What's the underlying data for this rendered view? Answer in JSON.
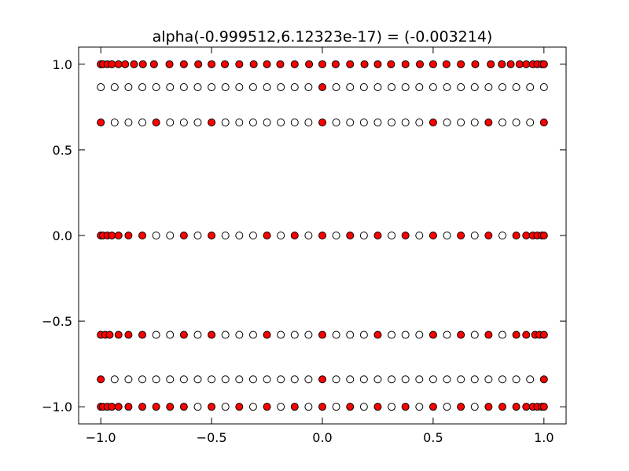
{
  "chart_data": {
    "type": "scatter",
    "title": "alpha(-0.999512,6.12323e-17) =  (-0.003214)",
    "xlabel": "",
    "ylabel": "",
    "xlim": [
      -1.1,
      1.1
    ],
    "ylim": [
      -1.1,
      1.1
    ],
    "grid": false,
    "legend": "none",
    "xticks": [
      -1.0,
      -0.5,
      0.0,
      0.5,
      1.0
    ],
    "xtick_labels": [
      "−1.0",
      "−0.5",
      "0.0",
      "0.5",
      "1.0"
    ],
    "yticks": [
      -1.0,
      -0.5,
      0.0,
      0.5,
      1.0
    ],
    "ytick_labels": [
      "−1.0",
      "−0.5",
      "0.0",
      "0.5",
      "1.0"
    ],
    "series": [
      {
        "marker_fill": "#ffffff",
        "marker_edge": "#000000",
        "points": [
          [
            -1.0,
            0.866
          ],
          [
            -0.9375,
            0.866
          ],
          [
            -0.875,
            0.866
          ],
          [
            -0.8125,
            0.866
          ],
          [
            -0.75,
            0.866
          ],
          [
            -0.6875,
            0.866
          ],
          [
            -0.625,
            0.866
          ],
          [
            -0.5625,
            0.866
          ],
          [
            -0.5,
            0.866
          ],
          [
            -0.4375,
            0.866
          ],
          [
            -0.375,
            0.866
          ],
          [
            -0.3125,
            0.866
          ],
          [
            -0.25,
            0.866
          ],
          [
            -0.1875,
            0.866
          ],
          [
            -0.125,
            0.866
          ],
          [
            -0.0625,
            0.866
          ],
          [
            0.0625,
            0.866
          ],
          [
            0.125,
            0.866
          ],
          [
            0.1875,
            0.866
          ],
          [
            0.25,
            0.866
          ],
          [
            0.3125,
            0.866
          ],
          [
            0.375,
            0.866
          ],
          [
            0.4375,
            0.866
          ],
          [
            0.5,
            0.866
          ],
          [
            0.5625,
            0.866
          ],
          [
            0.625,
            0.866
          ],
          [
            0.6875,
            0.866
          ],
          [
            0.75,
            0.866
          ],
          [
            0.8125,
            0.866
          ],
          [
            0.875,
            0.866
          ],
          [
            0.9375,
            0.866
          ],
          [
            1.0,
            0.866
          ],
          [
            -0.9375,
            0.66
          ],
          [
            -0.875,
            0.66
          ],
          [
            -0.8125,
            0.66
          ],
          [
            -0.6875,
            0.66
          ],
          [
            -0.625,
            0.66
          ],
          [
            -0.5625,
            0.66
          ],
          [
            -0.4375,
            0.66
          ],
          [
            -0.375,
            0.66
          ],
          [
            -0.3125,
            0.66
          ],
          [
            -0.25,
            0.66
          ],
          [
            -0.1875,
            0.66
          ],
          [
            -0.125,
            0.66
          ],
          [
            -0.0625,
            0.66
          ],
          [
            0.0625,
            0.66
          ],
          [
            0.125,
            0.66
          ],
          [
            0.1875,
            0.66
          ],
          [
            0.25,
            0.66
          ],
          [
            0.3125,
            0.66
          ],
          [
            0.375,
            0.66
          ],
          [
            0.4375,
            0.66
          ],
          [
            0.5625,
            0.66
          ],
          [
            0.625,
            0.66
          ],
          [
            0.6875,
            0.66
          ],
          [
            0.8125,
            0.66
          ],
          [
            0.875,
            0.66
          ],
          [
            0.9375,
            0.66
          ],
          [
            -0.75,
            0.0
          ],
          [
            -0.6875,
            0.0
          ],
          [
            -0.5625,
            0.0
          ],
          [
            -0.4375,
            0.0
          ],
          [
            -0.375,
            0.0
          ],
          [
            -0.3125,
            0.0
          ],
          [
            -0.1875,
            0.0
          ],
          [
            -0.0625,
            0.0
          ],
          [
            0.0625,
            0.0
          ],
          [
            0.1875,
            0.0
          ],
          [
            0.3125,
            0.0
          ],
          [
            0.4375,
            0.0
          ],
          [
            0.5625,
            0.0
          ],
          [
            0.6875,
            0.0
          ],
          [
            0.8125,
            0.0
          ],
          [
            -0.75,
            -0.58
          ],
          [
            -0.6875,
            -0.58
          ],
          [
            -0.5625,
            -0.58
          ],
          [
            -0.4375,
            -0.58
          ],
          [
            -0.375,
            -0.58
          ],
          [
            -0.3125,
            -0.58
          ],
          [
            -0.1875,
            -0.58
          ],
          [
            -0.125,
            -0.58
          ],
          [
            -0.0625,
            -0.58
          ],
          [
            0.0625,
            -0.58
          ],
          [
            0.125,
            -0.58
          ],
          [
            0.1875,
            -0.58
          ],
          [
            0.3125,
            -0.58
          ],
          [
            0.375,
            -0.58
          ],
          [
            0.4375,
            -0.58
          ],
          [
            0.5625,
            -0.58
          ],
          [
            0.6875,
            -0.58
          ],
          [
            0.8125,
            -0.58
          ],
          [
            -0.9375,
            -0.84
          ],
          [
            -0.875,
            -0.84
          ],
          [
            -0.8125,
            -0.84
          ],
          [
            -0.75,
            -0.84
          ],
          [
            -0.6875,
            -0.84
          ],
          [
            -0.625,
            -0.84
          ],
          [
            -0.5625,
            -0.84
          ],
          [
            -0.5,
            -0.84
          ],
          [
            -0.4375,
            -0.84
          ],
          [
            -0.375,
            -0.84
          ],
          [
            -0.3125,
            -0.84
          ],
          [
            -0.25,
            -0.84
          ],
          [
            -0.1875,
            -0.84
          ],
          [
            -0.125,
            -0.84
          ],
          [
            -0.0625,
            -0.84
          ],
          [
            0.0625,
            -0.84
          ],
          [
            0.125,
            -0.84
          ],
          [
            0.1875,
            -0.84
          ],
          [
            0.25,
            -0.84
          ],
          [
            0.3125,
            -0.84
          ],
          [
            0.375,
            -0.84
          ],
          [
            0.4375,
            -0.84
          ],
          [
            0.5,
            -0.84
          ],
          [
            0.5625,
            -0.84
          ],
          [
            0.625,
            -0.84
          ],
          [
            0.6875,
            -0.84
          ],
          [
            0.75,
            -0.84
          ],
          [
            0.8125,
            -0.84
          ],
          [
            0.875,
            -0.84
          ],
          [
            0.9375,
            -0.84
          ],
          [
            -0.5625,
            -1.0
          ],
          [
            -0.4375,
            -1.0
          ],
          [
            -0.3125,
            -1.0
          ],
          [
            -0.1875,
            -1.0
          ],
          [
            -0.0625,
            -1.0
          ],
          [
            0.0625,
            -1.0
          ],
          [
            0.1875,
            -1.0
          ],
          [
            0.3125,
            -1.0
          ],
          [
            0.4375,
            -1.0
          ],
          [
            0.5625,
            -1.0
          ],
          [
            0.6875,
            -1.0
          ]
        ]
      },
      {
        "marker_fill": "#ff0000",
        "marker_edge": "#000000",
        "points": [
          [
            -1.0,
            1.0
          ],
          [
            -0.99,
            1.0
          ],
          [
            -0.97,
            1.0
          ],
          [
            -0.95,
            1.0
          ],
          [
            -0.92,
            1.0
          ],
          [
            -0.89,
            1.0
          ],
          [
            -0.85,
            1.0
          ],
          [
            -0.81,
            1.0
          ],
          [
            -0.76,
            1.0
          ],
          [
            -0.69,
            1.0
          ],
          [
            -0.625,
            1.0
          ],
          [
            -0.56,
            1.0
          ],
          [
            -0.5,
            1.0
          ],
          [
            -0.44,
            1.0
          ],
          [
            -0.375,
            1.0
          ],
          [
            -0.31,
            1.0
          ],
          [
            -0.25,
            1.0
          ],
          [
            -0.19,
            1.0
          ],
          [
            -0.125,
            1.0
          ],
          [
            -0.06,
            1.0
          ],
          [
            0.0,
            1.0
          ],
          [
            0.06,
            1.0
          ],
          [
            0.125,
            1.0
          ],
          [
            0.19,
            1.0
          ],
          [
            0.25,
            1.0
          ],
          [
            0.31,
            1.0
          ],
          [
            0.375,
            1.0
          ],
          [
            0.44,
            1.0
          ],
          [
            0.5,
            1.0
          ],
          [
            0.56,
            1.0
          ],
          [
            0.625,
            1.0
          ],
          [
            0.69,
            1.0
          ],
          [
            0.76,
            1.0
          ],
          [
            0.81,
            1.0
          ],
          [
            0.85,
            1.0
          ],
          [
            0.89,
            1.0
          ],
          [
            0.92,
            1.0
          ],
          [
            0.95,
            1.0
          ],
          [
            0.97,
            1.0
          ],
          [
            0.99,
            1.0
          ],
          [
            1.0,
            1.0
          ],
          [
            0.0,
            0.866
          ],
          [
            -1.0,
            0.66
          ],
          [
            -0.75,
            0.66
          ],
          [
            -0.5,
            0.66
          ],
          [
            0.0,
            0.66
          ],
          [
            0.5,
            0.66
          ],
          [
            0.75,
            0.66
          ],
          [
            1.0,
            0.66
          ],
          [
            -1.0,
            0.0
          ],
          [
            -0.99,
            0.0
          ],
          [
            -0.97,
            0.0
          ],
          [
            -0.95,
            0.0
          ],
          [
            -0.92,
            0.0
          ],
          [
            -0.875,
            0.0
          ],
          [
            -0.8125,
            0.0
          ],
          [
            -0.625,
            0.0
          ],
          [
            -0.5,
            0.0
          ],
          [
            -0.25,
            0.0
          ],
          [
            -0.125,
            0.0
          ],
          [
            0.0,
            0.0
          ],
          [
            0.125,
            0.0
          ],
          [
            0.25,
            0.0
          ],
          [
            0.375,
            0.0
          ],
          [
            0.5,
            0.0
          ],
          [
            0.625,
            0.0
          ],
          [
            0.75,
            0.0
          ],
          [
            0.875,
            0.0
          ],
          [
            0.92,
            0.0
          ],
          [
            0.95,
            0.0
          ],
          [
            0.97,
            0.0
          ],
          [
            0.99,
            0.0
          ],
          [
            1.0,
            0.0
          ],
          [
            -1.0,
            -0.58
          ],
          [
            -0.98,
            -0.58
          ],
          [
            -0.96,
            -0.58
          ],
          [
            -0.92,
            -0.58
          ],
          [
            -0.875,
            -0.58
          ],
          [
            -0.8125,
            -0.58
          ],
          [
            -0.625,
            -0.58
          ],
          [
            -0.5,
            -0.58
          ],
          [
            -0.25,
            -0.58
          ],
          [
            0.0,
            -0.58
          ],
          [
            0.25,
            -0.58
          ],
          [
            0.5,
            -0.58
          ],
          [
            0.625,
            -0.58
          ],
          [
            0.75,
            -0.58
          ],
          [
            0.875,
            -0.58
          ],
          [
            0.92,
            -0.58
          ],
          [
            0.96,
            -0.58
          ],
          [
            0.98,
            -0.58
          ],
          [
            1.0,
            -0.58
          ],
          [
            -1.0,
            -0.84
          ],
          [
            0.0,
            -0.84
          ],
          [
            1.0,
            -0.84
          ],
          [
            -1.0,
            -1.0
          ],
          [
            -0.99,
            -1.0
          ],
          [
            -0.97,
            -1.0
          ],
          [
            -0.95,
            -1.0
          ],
          [
            -0.92,
            -1.0
          ],
          [
            -0.875,
            -1.0
          ],
          [
            -0.8125,
            -1.0
          ],
          [
            -0.75,
            -1.0
          ],
          [
            -0.6875,
            -1.0
          ],
          [
            -0.625,
            -1.0
          ],
          [
            -0.5,
            -1.0
          ],
          [
            -0.375,
            -1.0
          ],
          [
            -0.25,
            -1.0
          ],
          [
            -0.125,
            -1.0
          ],
          [
            0.0,
            -1.0
          ],
          [
            0.125,
            -1.0
          ],
          [
            0.25,
            -1.0
          ],
          [
            0.375,
            -1.0
          ],
          [
            0.5,
            -1.0
          ],
          [
            0.625,
            -1.0
          ],
          [
            0.75,
            -1.0
          ],
          [
            0.8125,
            -1.0
          ],
          [
            0.875,
            -1.0
          ],
          [
            0.92,
            -1.0
          ],
          [
            0.95,
            -1.0
          ],
          [
            0.97,
            -1.0
          ],
          [
            0.99,
            -1.0
          ],
          [
            1.0,
            -1.0
          ]
        ]
      }
    ]
  }
}
